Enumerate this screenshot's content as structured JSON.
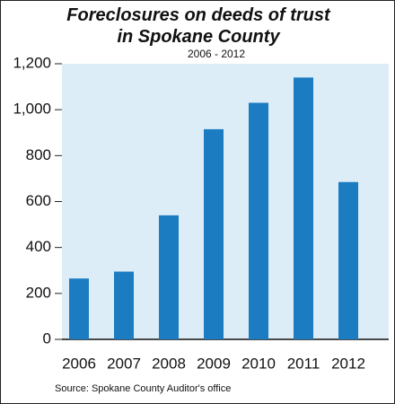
{
  "chart_data": {
    "type": "bar",
    "title": "Foreclosures on deeds of trust in Spokane County",
    "subtitle": "2006 - 2012",
    "categories": [
      "2006",
      "2007",
      "2008",
      "2009",
      "2010",
      "2011",
      "2012"
    ],
    "values": [
      265,
      295,
      540,
      915,
      1030,
      1140,
      685
    ],
    "color": "#1b7cc1",
    "ylim": [
      0,
      1200
    ],
    "yticks": [
      0,
      200,
      400,
      600,
      800,
      {
        "value": 1000,
        "label": "1,000"
      },
      {
        "value": 1200,
        "label": "1,200"
      }
    ],
    "source": "Source: Spokane County Auditor's office"
  }
}
